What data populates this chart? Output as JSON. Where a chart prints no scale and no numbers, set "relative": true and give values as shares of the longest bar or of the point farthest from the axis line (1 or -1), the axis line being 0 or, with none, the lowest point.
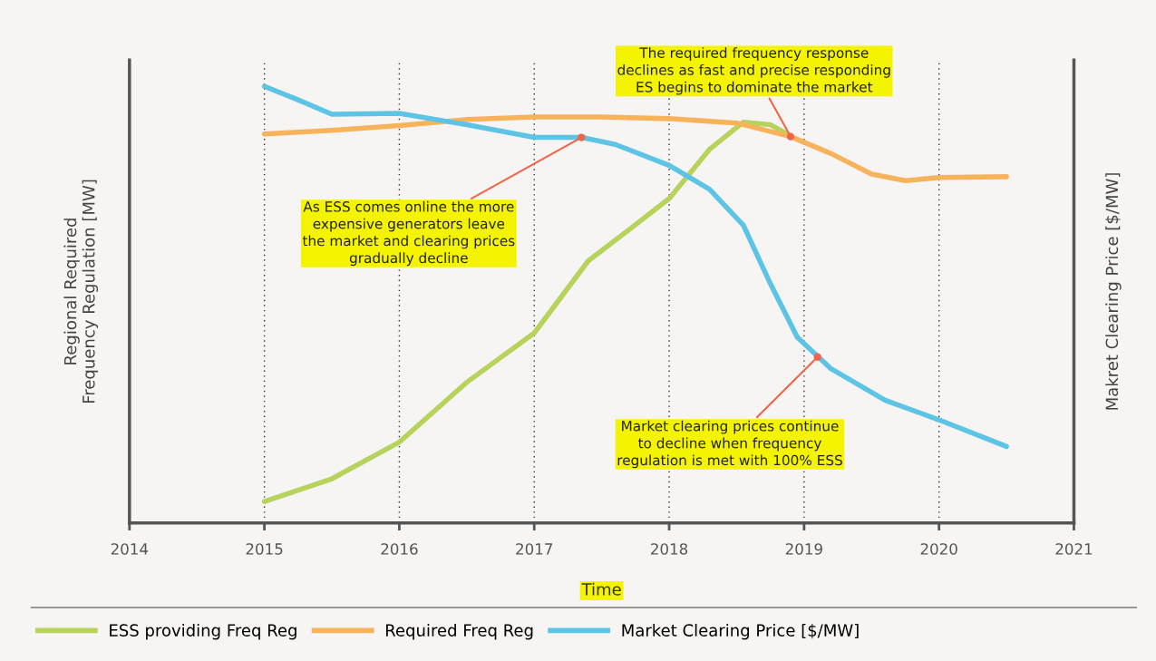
{
  "chart_data": {
    "type": "line",
    "relative": true,
    "xlabel": "Time",
    "ylabel": "Regional Required\nFrequency Regulation [MW]",
    "y2label": "Makret Clearing Price [$/MW]",
    "xlim": [
      2014,
      2021
    ],
    "xticks": [
      2014,
      2015,
      2016,
      2017,
      2018,
      2019,
      2020,
      2021
    ],
    "grid": "x",
    "legend": "bottom",
    "marker": "none",
    "line_style": "solid",
    "series": [
      {
        "name": "ESS providing Freq Reg",
        "color": "#b8d35c",
        "x": [
          2015,
          2015.5,
          2016,
          2016.5,
          2017,
          2017.4,
          2017.7,
          2018,
          2018.3,
          2018.55,
          2018.75,
          2018.9
        ],
        "values": [
          0.049,
          0.101,
          0.185,
          0.322,
          0.435,
          0.6,
          0.671,
          0.743,
          0.856,
          0.918,
          0.912,
          0.887
        ]
      },
      {
        "name": "Required Freq Reg",
        "color": "#f7b35b",
        "x": [
          2015,
          2015.5,
          2016,
          2016.5,
          2017,
          2017.5,
          2018,
          2018.5,
          2018.9,
          2019.2,
          2019.5,
          2019.75,
          2020,
          2020.5
        ],
        "values": [
          0.891,
          0.899,
          0.91,
          0.924,
          0.93,
          0.93,
          0.926,
          0.916,
          0.885,
          0.846,
          0.799,
          0.784,
          0.791,
          0.793
        ]
      },
      {
        "name": "Market Clearing Price [$/MW]",
        "color": "#5ec4e6",
        "x": [
          2015,
          2015.25,
          2015.5,
          2016,
          2016.5,
          2017,
          2017.35,
          2017.6,
          2018,
          2018.3,
          2018.55,
          2018.75,
          2018.95,
          2019.2,
          2019.6,
          2020,
          2020.5
        ],
        "values": [
          1.0,
          0.969,
          0.936,
          0.938,
          0.912,
          0.883,
          0.883,
          0.867,
          0.819,
          0.764,
          0.682,
          0.548,
          0.425,
          0.353,
          0.281,
          0.236,
          0.175
        ]
      }
    ],
    "annotations": [
      {
        "text": "As ESS comes online the more\nexpensive generators leave\nthe market and clearing prices\ngradually decline",
        "x": 2017.35,
        "y": 0.883
      },
      {
        "text": "The required frequency response\ndeclines as fast and precise responding\nES begins to dominate the market",
        "x": 2018.9,
        "y": 0.885
      },
      {
        "text": "Market clearing prices continue\nto decline when frequency\nregulation is met with 100% ESS",
        "x": 2019.1,
        "y": 0.38
      }
    ]
  }
}
